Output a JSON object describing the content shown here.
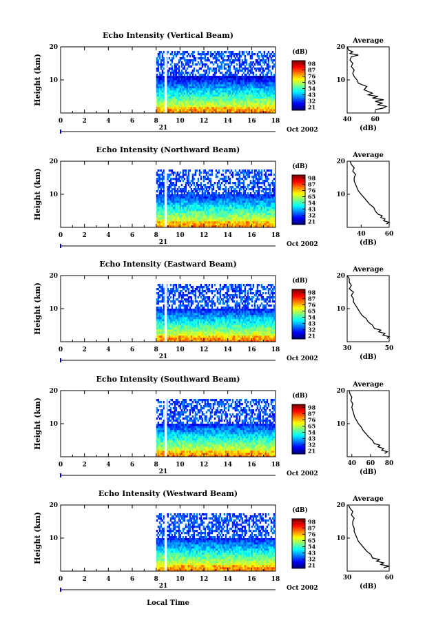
{
  "figure": {
    "xlabel_bottom": "Local Time",
    "date_label": "21",
    "month_label": "Oct 2002"
  },
  "chart_data": [
    {
      "type": "heatmap",
      "title": "Echo Intensity (Vertical Beam)",
      "ylabel": "Height (km)",
      "xlabel": "Local Time",
      "x_ticks": [
        0,
        2,
        4,
        6,
        8,
        10,
        12,
        14,
        16,
        18
      ],
      "y_ticks": [
        10,
        20
      ],
      "xlim": [
        0,
        18
      ],
      "ylim": [
        0,
        20
      ],
      "data_start_hour": 8.0,
      "data_end_hour": 17.9,
      "gap_hours": [
        8.7,
        8.9
      ],
      "top_km": 19.0,
      "sparse_above_km": 11.5,
      "colorbar": {
        "unit": "(dB)",
        "ticks": [
          98,
          87,
          76,
          65,
          54,
          43,
          32,
          21
        ]
      },
      "average": {
        "title": "Average",
        "xlabel": "(dB)",
        "x_ticks": [
          40,
          60
        ],
        "xlim": [
          40,
          70
        ],
        "y_ticks": [
          10,
          20
        ],
        "profile": [
          [
            1,
            60
          ],
          [
            1.5,
            66
          ],
          [
            2,
            68
          ],
          [
            2.5,
            62
          ],
          [
            3,
            65
          ],
          [
            3.5,
            60
          ],
          [
            4,
            66
          ],
          [
            4.5,
            58
          ],
          [
            5,
            62
          ],
          [
            5.5,
            55
          ],
          [
            6,
            58
          ],
          [
            7,
            52
          ],
          [
            8,
            54
          ],
          [
            9,
            48
          ],
          [
            10,
            47
          ],
          [
            11,
            45
          ],
          [
            12,
            44
          ],
          [
            13,
            45
          ],
          [
            14,
            43
          ],
          [
            15,
            44
          ],
          [
            16,
            42
          ],
          [
            17,
            43
          ],
          [
            17.5,
            48
          ],
          [
            18,
            42
          ],
          [
            18.5,
            44
          ],
          [
            19,
            41
          ],
          [
            20,
            40
          ]
        ]
      }
    },
    {
      "type": "heatmap",
      "title": "Echo Intensity (Northward Beam)",
      "ylabel": "Height (km)",
      "xlabel": "Local Time",
      "x_ticks": [
        0,
        2,
        4,
        6,
        8,
        10,
        12,
        14,
        16,
        18
      ],
      "y_ticks": [
        10,
        20
      ],
      "xlim": [
        0,
        18
      ],
      "ylim": [
        0,
        20
      ],
      "data_start_hour": 8.0,
      "data_end_hour": 17.9,
      "gap_hours": [
        8.7,
        8.9
      ],
      "top_km": 18.0,
      "sparse_above_km": 10.0,
      "colorbar": {
        "unit": "(dB)",
        "ticks": [
          98,
          87,
          76,
          65,
          54,
          43,
          32,
          21
        ]
      },
      "average": {
        "title": "Average",
        "xlabel": "(dB)",
        "x_ticks": [
          40,
          60
        ],
        "xlim": [
          30,
          60
        ],
        "y_ticks": [
          10,
          20
        ],
        "profile": [
          [
            1,
            58
          ],
          [
            1.5,
            60
          ],
          [
            2,
            56
          ],
          [
            2.5,
            57
          ],
          [
            3,
            54
          ],
          [
            3.5,
            55
          ],
          [
            4,
            52
          ],
          [
            5,
            50
          ],
          [
            6,
            49
          ],
          [
            7,
            46
          ],
          [
            8,
            44
          ],
          [
            9,
            42
          ],
          [
            10,
            40
          ],
          [
            11,
            38
          ],
          [
            12,
            37
          ],
          [
            13,
            36
          ],
          [
            14,
            35
          ],
          [
            15,
            35
          ],
          [
            16,
            36
          ],
          [
            17,
            34
          ],
          [
            18,
            35
          ],
          [
            19,
            33
          ],
          [
            20,
            32
          ]
        ]
      }
    },
    {
      "type": "heatmap",
      "title": "Echo Intensity (Eastward Beam)",
      "ylabel": "Height (km)",
      "xlabel": "Local Time",
      "x_ticks": [
        0,
        2,
        4,
        6,
        8,
        10,
        12,
        14,
        16,
        18
      ],
      "y_ticks": [
        10,
        20
      ],
      "xlim": [
        0,
        18
      ],
      "ylim": [
        0,
        20
      ],
      "data_start_hour": 8.0,
      "data_end_hour": 17.9,
      "gap_hours": [
        8.7,
        8.9
      ],
      "top_km": 18.0,
      "sparse_above_km": 10.0,
      "colorbar": {
        "unit": "(dB)",
        "ticks": [
          98,
          87,
          76,
          65,
          54,
          43,
          32,
          21
        ]
      },
      "average": {
        "title": "Average",
        "xlabel": "(dB)",
        "x_ticks": [
          30,
          50
        ],
        "xlim": [
          30,
          50
        ],
        "y_ticks": [
          10,
          20
        ],
        "profile": [
          [
            1,
            49
          ],
          [
            1.5,
            50
          ],
          [
            2,
            47
          ],
          [
            2.5,
            48
          ],
          [
            3,
            45
          ],
          [
            3.5,
            46
          ],
          [
            4,
            43
          ],
          [
            5,
            42
          ],
          [
            6,
            40
          ],
          [
            7,
            39
          ],
          [
            8,
            37
          ],
          [
            9,
            36
          ],
          [
            10,
            35
          ],
          [
            11,
            34
          ],
          [
            12,
            33
          ],
          [
            13,
            33
          ],
          [
            14,
            32
          ],
          [
            15,
            33
          ],
          [
            16,
            31
          ],
          [
            17,
            32
          ],
          [
            18,
            31
          ],
          [
            19,
            31
          ],
          [
            20,
            30
          ]
        ]
      }
    },
    {
      "type": "heatmap",
      "title": "Echo Intensity (Southward Beam)",
      "ylabel": "Height (km)",
      "xlabel": "Local Time",
      "x_ticks": [
        0,
        2,
        4,
        6,
        8,
        10,
        12,
        14,
        16,
        18
      ],
      "y_ticks": [
        10,
        20
      ],
      "xlim": [
        0,
        18
      ],
      "ylim": [
        0,
        20
      ],
      "data_start_hour": 8.0,
      "data_end_hour": 17.9,
      "gap_hours": [
        8.7,
        8.9
      ],
      "top_km": 18.0,
      "sparse_above_km": 10.5,
      "colorbar": {
        "unit": "(dB)",
        "ticks": [
          98,
          87,
          76,
          65,
          54,
          43,
          32,
          21
        ]
      },
      "average": {
        "title": "Average",
        "xlabel": "(dB)",
        "x_ticks": [
          40,
          60,
          80
        ],
        "xlim": [
          35,
          80
        ],
        "y_ticks": [
          10,
          20
        ],
        "profile": [
          [
            1,
            75
          ],
          [
            1.5,
            78
          ],
          [
            2,
            72
          ],
          [
            2.5,
            74
          ],
          [
            3,
            68
          ],
          [
            3.5,
            70
          ],
          [
            4,
            64
          ],
          [
            5,
            62
          ],
          [
            6,
            58
          ],
          [
            7,
            55
          ],
          [
            8,
            52
          ],
          [
            9,
            50
          ],
          [
            10,
            47
          ],
          [
            11,
            45
          ],
          [
            12,
            43
          ],
          [
            13,
            42
          ],
          [
            14,
            41
          ],
          [
            15,
            40
          ],
          [
            16,
            41
          ],
          [
            17,
            39
          ],
          [
            18,
            40
          ],
          [
            19,
            38
          ],
          [
            20,
            37
          ]
        ]
      }
    },
    {
      "type": "heatmap",
      "title": "Echo Intensity (Westward Beam)",
      "ylabel": "Height (km)",
      "xlabel": "Local Time",
      "x_ticks": [
        0,
        2,
        4,
        6,
        8,
        10,
        12,
        14,
        16,
        18
      ],
      "y_ticks": [
        10,
        20
      ],
      "xlim": [
        0,
        18
      ],
      "ylim": [
        0,
        20
      ],
      "data_start_hour": 8.0,
      "data_end_hour": 17.9,
      "gap_hours": [
        8.7,
        8.9
      ],
      "top_km": 18.0,
      "sparse_above_km": 10.0,
      "colorbar": {
        "unit": "(dB)",
        "ticks": [
          98,
          87,
          76,
          65,
          54,
          43,
          32,
          21
        ]
      },
      "average": {
        "title": "Average",
        "xlabel": "(dB)",
        "x_ticks": [
          30,
          60
        ],
        "xlim": [
          30,
          60
        ],
        "y_ticks": [
          10,
          20
        ],
        "profile": [
          [
            1,
            56
          ],
          [
            1.5,
            60
          ],
          [
            2,
            54
          ],
          [
            2.5,
            56
          ],
          [
            3,
            51
          ],
          [
            3.5,
            53
          ],
          [
            4,
            48
          ],
          [
            5,
            47
          ],
          [
            6,
            44
          ],
          [
            7,
            42
          ],
          [
            8,
            40
          ],
          [
            9,
            38
          ],
          [
            10,
            37
          ],
          [
            11,
            36
          ],
          [
            12,
            35
          ],
          [
            13,
            35
          ],
          [
            14,
            34
          ],
          [
            15,
            34
          ],
          [
            16,
            35
          ],
          [
            17,
            33
          ],
          [
            18,
            34
          ],
          [
            19,
            32
          ],
          [
            20,
            31
          ]
        ]
      }
    }
  ]
}
